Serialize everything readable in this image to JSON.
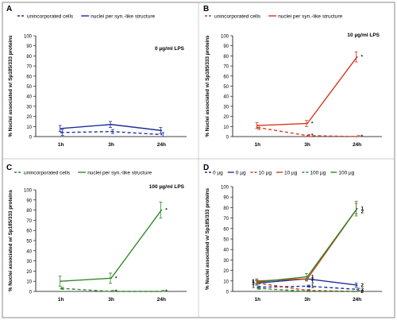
{
  "chart_data": [
    {
      "panel": "A",
      "type": "line",
      "categories": [
        "1h",
        "3h",
        "24h"
      ],
      "ylabel": "% Nuclei associated w/ Sp185/333 proteins",
      "ylim": [
        0,
        100
      ],
      "yticks": [
        0,
        10,
        20,
        30,
        40,
        50,
        60,
        70,
        80,
        90,
        100
      ],
      "annotation": "0 µg/ml LPS",
      "legend": [
        {
          "label": "unincorporated cells",
          "color": "#1f2f9e",
          "dashed": true
        },
        {
          "label": "nuclei per syn.-like structure",
          "color": "#1f2f9e",
          "dashed": false
        }
      ],
      "series": [
        {
          "name": "unincorporated cells",
          "color": "#1f2f9e",
          "dashed": true,
          "values": [
            4,
            5,
            2
          ],
          "errors": [
            3,
            2,
            2
          ]
        },
        {
          "name": "nuclei per syn.-like structure",
          "color": "#1f2f9e",
          "dashed": false,
          "values": [
            8,
            12,
            6
          ],
          "errors": [
            3,
            3,
            3
          ]
        }
      ],
      "point_labels": []
    },
    {
      "panel": "B",
      "type": "line",
      "categories": [
        "1h",
        "3h",
        "24h"
      ],
      "ylabel": "% Nuclei associated w/ Sp185/333 proteins",
      "ylim": [
        0,
        100
      ],
      "yticks": [
        0,
        10,
        20,
        30,
        40,
        50,
        60,
        70,
        80,
        90,
        100
      ],
      "annotation": "10 µg/ml LPS",
      "legend": [
        {
          "label": "unincorporated cells",
          "color": "#d23a1e",
          "dashed": true
        },
        {
          "label": "nuclei per syn.-like structure",
          "color": "#d23a1e",
          "dashed": false
        }
      ],
      "series": [
        {
          "name": "unincorporated cells",
          "color": "#d23a1e",
          "dashed": true,
          "values": [
            9,
            1,
            0
          ],
          "errors": [
            2,
            1,
            1
          ]
        },
        {
          "name": "nuclei per syn.-like structure",
          "color": "#d23a1e",
          "dashed": false,
          "values": [
            11,
            13,
            79
          ],
          "errors": [
            3,
            3,
            5
          ]
        }
      ],
      "point_labels": [
        {
          "series": 1,
          "index": 1,
          "text": "*"
        },
        {
          "series": 0,
          "index": 1,
          "text": "*"
        },
        {
          "series": 1,
          "index": 2,
          "text": "*"
        },
        {
          "series": 0,
          "index": 2,
          "text": "*"
        }
      ]
    },
    {
      "panel": "C",
      "type": "line",
      "categories": [
        "1h",
        "3h",
        "24h"
      ],
      "ylabel": "% Nuclei associated w/ Sp185/333 proteins",
      "ylim": [
        0,
        100
      ],
      "yticks": [
        0,
        10,
        20,
        30,
        40,
        50,
        60,
        70,
        80,
        90,
        100
      ],
      "annotation": "100 µg/ml LPS",
      "legend": [
        {
          "label": "unincorporated cells",
          "color": "#2f8a2a",
          "dashed": true
        },
        {
          "label": "nuclei per syn.-like structure",
          "color": "#2f8a2a",
          "dashed": false
        }
      ],
      "series": [
        {
          "name": "unincorporated cells",
          "color": "#2f8a2a",
          "dashed": true,
          "values": [
            3,
            0,
            0
          ],
          "errors": [
            1,
            1,
            1
          ]
        },
        {
          "name": "nuclei per syn.-like structure",
          "color": "#2f8a2a",
          "dashed": false,
          "values": [
            10,
            13,
            80
          ],
          "errors": [
            5,
            5,
            8
          ]
        }
      ],
      "point_labels": [
        {
          "series": 1,
          "index": 1,
          "text": "*"
        },
        {
          "series": 0,
          "index": 1,
          "text": "*"
        },
        {
          "series": 1,
          "index": 2,
          "text": "*"
        },
        {
          "series": 0,
          "index": 2,
          "text": "*"
        }
      ]
    },
    {
      "panel": "D",
      "type": "line",
      "categories": [
        "1h",
        "3h",
        "24h"
      ],
      "ylabel": "% Nuclei associated w/ Sp185/333 proteins",
      "ylim": [
        0,
        100
      ],
      "yticks": [
        0,
        10,
        20,
        30,
        40,
        50,
        60,
        70,
        80,
        90,
        100
      ],
      "annotation": "",
      "legend": [
        {
          "label": "0 µg",
          "color": "#1f2f9e",
          "dashed": true
        },
        {
          "label": "0 µg",
          "color": "#1f2f9e",
          "dashed": false
        },
        {
          "label": "10 µg",
          "color": "#d23a1e",
          "dashed": true
        },
        {
          "label": "10 µg",
          "color": "#d23a1e",
          "dashed": false
        },
        {
          "label": "100 µg",
          "color": "#2f8a2a",
          "dashed": true
        },
        {
          "label": "100 µg",
          "color": "#2f8a2a",
          "dashed": false
        }
      ],
      "series": [
        {
          "name": "0 µg",
          "color": "#1f2f9e",
          "dashed": true,
          "values": [
            4,
            5,
            2
          ],
          "errors": [
            1,
            1,
            1
          ]
        },
        {
          "name": "0 µg",
          "color": "#1f2f9e",
          "dashed": false,
          "values": [
            8,
            12,
            6
          ],
          "errors": [
            2,
            2,
            2
          ]
        },
        {
          "name": "10 µg",
          "color": "#d23a1e",
          "dashed": true,
          "values": [
            8,
            1,
            0
          ],
          "errors": [
            1,
            1,
            1
          ]
        },
        {
          "name": "10 µg",
          "color": "#d23a1e",
          "dashed": false,
          "values": [
            10,
            12,
            79
          ],
          "errors": [
            2,
            2,
            5
          ]
        },
        {
          "name": "100 µg",
          "color": "#2f8a2a",
          "dashed": true,
          "values": [
            3,
            0,
            0
          ],
          "errors": [
            1,
            1,
            1
          ]
        },
        {
          "name": "100 µg",
          "color": "#2f8a2a",
          "dashed": false,
          "values": [
            9,
            14,
            79
          ],
          "errors": [
            2,
            3,
            7
          ]
        }
      ],
      "point_labels": [
        {
          "series": 5,
          "index": 2,
          "text": "1"
        },
        {
          "series": 1,
          "index": 2,
          "text": "2"
        },
        {
          "series": 3,
          "index": 2,
          "text": "2"
        },
        {
          "series": 0,
          "index": 2,
          "text": "2"
        },
        {
          "series": 2,
          "index": 2,
          "text": "2"
        },
        {
          "series": 1,
          "index": 1,
          "text": "1"
        },
        {
          "series": 5,
          "index": 1,
          "text": "1"
        },
        {
          "series": 3,
          "index": 1,
          "text": "1"
        },
        {
          "series": 0,
          "index": 1,
          "text": "1"
        },
        {
          "series": 1,
          "index": 0,
          "text": "1"
        },
        {
          "series": 3,
          "index": 0,
          "text": "1"
        },
        {
          "series": 5,
          "index": 0,
          "text": "1"
        },
        {
          "series": 2,
          "index": 0,
          "text": "1"
        }
      ]
    }
  ]
}
